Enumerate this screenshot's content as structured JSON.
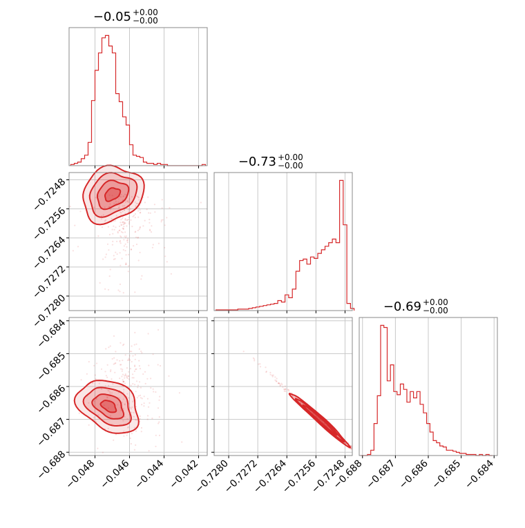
{
  "chart_data": {
    "type": "corner",
    "color": "#d62728",
    "panels": [
      {
        "id": "hist-0",
        "type": "histogram",
        "title": {
          "value": "−0.05",
          "upper": "+0.00",
          "lower": "−0.00"
        },
        "xlim": [
          -0.0495,
          -0.0415
        ],
        "bin_centers": [
          -0.0493,
          -0.0491,
          -0.0489,
          -0.0487,
          -0.0485,
          -0.0483,
          -0.0481,
          -0.0479,
          -0.0477,
          -0.0475,
          -0.0473,
          -0.0471,
          -0.0469,
          -0.0467,
          -0.0465,
          -0.0463,
          -0.0461,
          -0.0459,
          -0.0457,
          -0.0455,
          -0.0453,
          -0.0451,
          -0.0449,
          -0.0447,
          -0.0445,
          -0.0443,
          -0.0441,
          -0.0439,
          -0.0437,
          -0.0435,
          -0.0433,
          -0.0431,
          -0.0429,
          -0.0427,
          -0.0425,
          -0.0423,
          -0.0421,
          -0.0419,
          -0.0417
        ],
        "counts": [
          1,
          2,
          3,
          6,
          9,
          20,
          56,
          82,
          97,
          110,
          112,
          103,
          97,
          62,
          55,
          42,
          35,
          18,
          9,
          8,
          7,
          3,
          2,
          2,
          1,
          2,
          1,
          1,
          0,
          0,
          0,
          0,
          0,
          0,
          0,
          0,
          0,
          0,
          1
        ],
        "xticks": [
          -0.048,
          -0.046,
          -0.044,
          -0.042
        ]
      },
      {
        "id": "hist-1",
        "type": "histogram",
        "title": {
          "value": "−0.73",
          "upper": "+0.00",
          "lower": "−0.00"
        },
        "xlim": [
          -0.7284,
          -0.7246
        ],
        "bin_centers": [
          -0.7283,
          -0.7282,
          -0.7281,
          -0.728,
          -0.7279,
          -0.7278,
          -0.7277,
          -0.7276,
          -0.7275,
          -0.7274,
          -0.7273,
          -0.7272,
          -0.7271,
          -0.727,
          -0.7269,
          -0.7268,
          -0.7267,
          -0.7266,
          -0.7265,
          -0.7264,
          -0.7263,
          -0.7262,
          -0.7261,
          -0.726,
          -0.7259,
          -0.7258,
          -0.7257,
          -0.7256,
          -0.7255,
          -0.7254,
          -0.7253,
          -0.7252,
          -0.7251,
          -0.725,
          -0.7249,
          -0.7248,
          -0.7247,
          -0.7246
        ],
        "counts": [
          1,
          1,
          1,
          1,
          1,
          1,
          2,
          2,
          2,
          3,
          4,
          5,
          6,
          7,
          8,
          9,
          10,
          14,
          12,
          22,
          18,
          30,
          55,
          70,
          72,
          65,
          75,
          73,
          80,
          85,
          90,
          95,
          100,
          95,
          182,
          120,
          10,
          3
        ],
        "xticks": [
          -0.728,
          -0.7272,
          -0.7264,
          -0.7256,
          -0.7248
        ]
      },
      {
        "id": "hist-2",
        "type": "histogram",
        "title": {
          "value": "−0.69",
          "upper": "+0.00",
          "lower": "−0.00"
        },
        "xlim": [
          -0.6881,
          -0.6839
        ],
        "bin_centers": [
          -0.688,
          -0.6879,
          -0.6878,
          -0.6877,
          -0.6876,
          -0.6875,
          -0.6874,
          -0.6873,
          -0.6872,
          -0.6871,
          -0.687,
          -0.6869,
          -0.6868,
          -0.6867,
          -0.6866,
          -0.6865,
          -0.6864,
          -0.6863,
          -0.6862,
          -0.6861,
          -0.686,
          -0.6859,
          -0.6858,
          -0.6857,
          -0.6856,
          -0.6855,
          -0.6854,
          -0.6853,
          -0.6852,
          -0.6851,
          -0.685,
          -0.6849,
          -0.6848,
          -0.6847,
          -0.6846,
          -0.6845,
          -0.6844,
          -0.6843,
          -0.6842,
          -0.6841
        ],
        "counts": [
          0,
          0,
          1,
          5,
          30,
          56,
          122,
          120,
          70,
          85,
          60,
          57,
          67,
          62,
          50,
          60,
          54,
          60,
          48,
          40,
          30,
          22,
          14,
          12,
          9,
          8,
          5,
          5,
          4,
          3,
          2,
          2,
          1,
          1,
          1,
          0,
          1,
          0,
          1,
          0
        ],
        "xticks": [
          -0.688,
          -0.687,
          -0.686,
          -0.685,
          -0.684
        ]
      },
      {
        "id": "contour-1-0",
        "type": "2d-contour",
        "x_param": 0,
        "y_param": 1,
        "xlim": [
          -0.0495,
          -0.0415
        ],
        "ylim": [
          -0.7284,
          -0.7246
        ],
        "yticks": [
          -0.7248,
          -0.7256,
          -0.7264,
          -0.7272,
          -0.728
        ]
      },
      {
        "id": "contour-2-0",
        "type": "2d-contour",
        "x_param": 0,
        "y_param": 2,
        "xlim": [
          -0.0495,
          -0.0415
        ],
        "ylim": [
          -0.6881,
          -0.6839
        ],
        "yticks": [
          -0.684,
          -0.685,
          -0.686,
          -0.687,
          -0.688
        ]
      },
      {
        "id": "contour-2-1",
        "type": "2d-contour",
        "x_param": 1,
        "y_param": 2,
        "xlim": [
          -0.7284,
          -0.7246
        ],
        "ylim": [
          -0.6881,
          -0.6839
        ]
      }
    ],
    "axis_tick_labels": {
      "x0": [
        "−0.048",
        "−0.046",
        "−0.044",
        "−0.042"
      ],
      "x1": [
        "−0.7280",
        "−0.7272",
        "−0.7264",
        "−0.7256",
        "−0.7248"
      ],
      "x2": [
        "−0.688",
        "−0.687",
        "−0.686",
        "−0.685",
        "−0.684"
      ],
      "y1": [
        "−0.7248",
        "−0.7256",
        "−0.7264",
        "−0.7272",
        "−0.7280"
      ],
      "y2": [
        "−0.684",
        "−0.685",
        "−0.686",
        "−0.687",
        "−0.688"
      ]
    },
    "grid": true
  }
}
